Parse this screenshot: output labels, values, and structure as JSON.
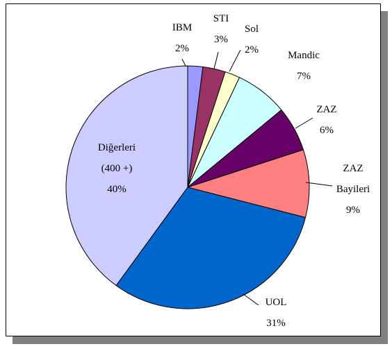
{
  "chart_data": {
    "type": "pie",
    "categories": [
      "IBM",
      "STI",
      "Sol",
      "Mandic",
      "ZAZ",
      "ZAZ\nBayileri",
      "UOL",
      "Diğerleri\n(400 +)"
    ],
    "values": [
      2,
      3,
      2,
      7,
      6,
      9,
      31,
      40
    ],
    "value_labels": [
      "2%",
      "3%",
      "2%",
      "7%",
      "6%",
      "9%",
      "31%",
      "40%"
    ],
    "colors": [
      "#9999ff",
      "#993366",
      "#ffffcc",
      "#ccffff",
      "#660066",
      "#ff8080",
      "#0066cc",
      "#ccccff"
    ]
  }
}
